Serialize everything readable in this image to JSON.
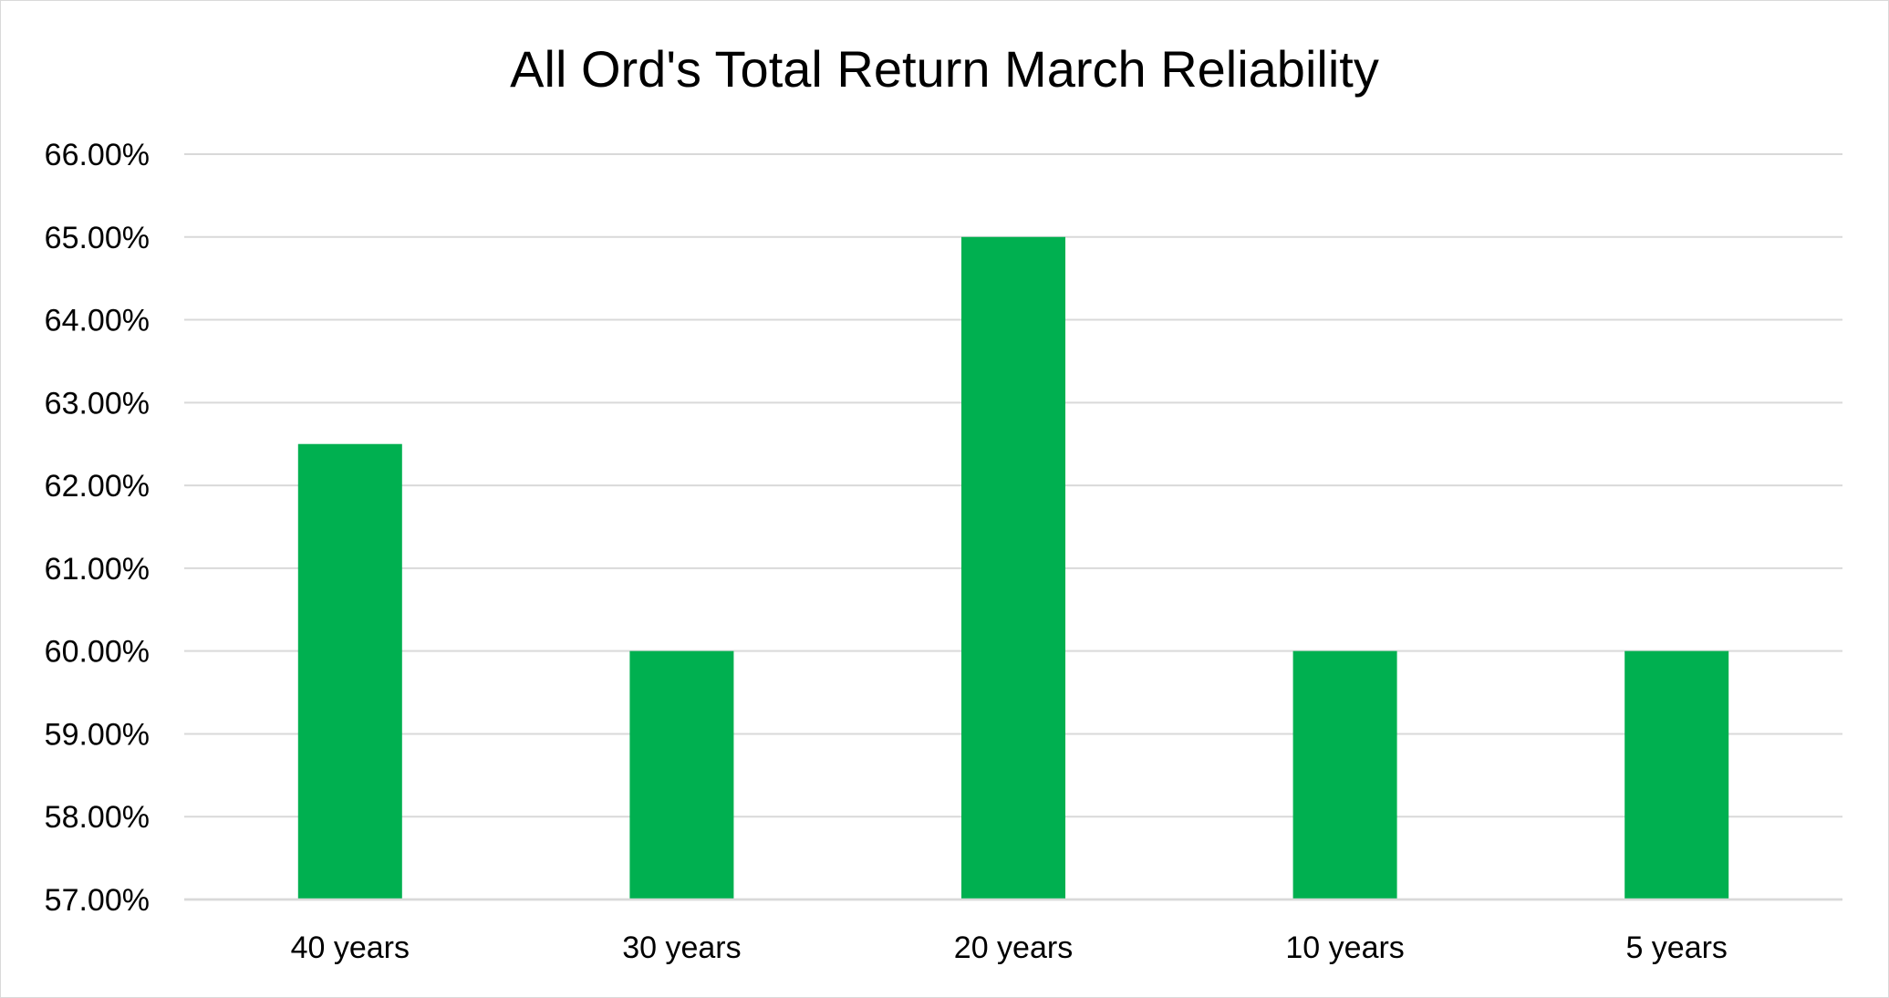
{
  "chart_data": {
    "type": "bar",
    "title": "All Ord's Total Return March Reliability",
    "xlabel": "",
    "ylabel": "",
    "categories": [
      "40 years",
      "30 years",
      "20 years",
      "10 years",
      "5 years"
    ],
    "values": [
      62.5,
      60.0,
      65.0,
      60.0,
      60.0
    ],
    "ylim": [
      57,
      66
    ],
    "yticks": [
      66,
      65,
      64,
      63,
      62,
      61,
      60,
      59,
      58,
      57
    ],
    "ytick_labels": [
      "66.00%",
      "65.00%",
      "64.00%",
      "63.00%",
      "62.00%",
      "61.00%",
      "60.00%",
      "59.00%",
      "58.00%",
      "57.00%"
    ],
    "grid": true,
    "legend": "none",
    "colors": {
      "bar": "#00B050",
      "grid": "#d9d9d9",
      "axis": "#d9d9d9",
      "text": "#000000"
    }
  }
}
